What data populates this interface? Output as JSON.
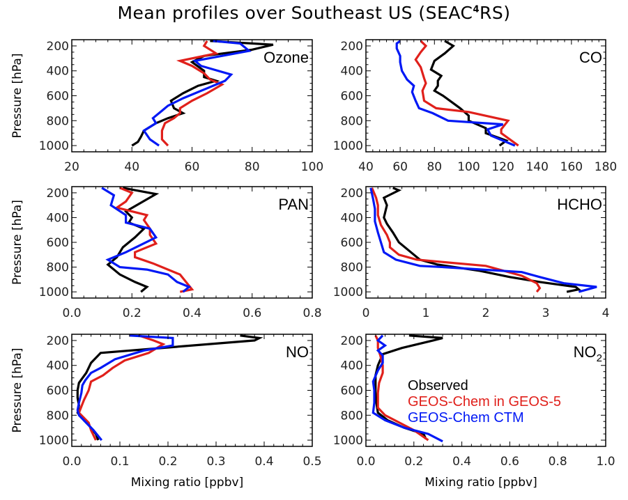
{
  "chart_data": {
    "type": "line",
    "title": "Mean profiles over Southeast US (SEAC4RS)",
    "title_parts": {
      "pre": "Mean profiles over Southeast US (SEAC",
      "sup": "4",
      "post": "RS)"
    },
    "ylabel": "Pressure [hPa]",
    "xlabel": "Mixing ratio [ppbv]",
    "y_ticks": [
      200,
      400,
      600,
      800,
      1000
    ],
    "ylim": [
      150,
      1050
    ],
    "y_reversed": true,
    "legend": {
      "placement": "inside NO2 panel, center-left",
      "entries": [
        {
          "name": "Observed",
          "color": "#000000"
        },
        {
          "name": "GEOS-Chem in GEOS-5",
          "color": "#e0201b"
        },
        {
          "name": "GEOS-Chem CTM",
          "color": "#0018f5"
        }
      ]
    },
    "series_colors": {
      "observed": "#000000",
      "geos5": "#e0201b",
      "ctm": "#0018f5"
    },
    "panels": [
      {
        "id": "ozone",
        "label": "Ozone",
        "label_sub": "",
        "xlim": [
          20,
          100
        ],
        "x_ticks": [
          20,
          40,
          60,
          80,
          100
        ],
        "x_tick_labels": [
          "20",
          "40",
          "60",
          "80",
          "100"
        ],
        "show_xlabel": false,
        "show_ylabel": true,
        "series": {
          "observed": {
            "p": [
              160,
              190,
              230,
              280,
              330,
              400,
              450,
              480,
              520,
              580,
              640,
              700,
              740,
              780,
              820,
              880,
              930,
              970,
              1000
            ],
            "v": [
              66,
              87,
              80,
              64,
              60,
              64,
              64,
              68,
              62,
              57,
              53,
              54,
              57,
              52,
              48,
              44,
              43,
              42,
              40
            ]
          },
          "geos5": {
            "p": [
              160,
              200,
              260,
              320,
              360,
              420,
              470,
              510,
              580,
              640,
              700,
              740,
              780,
              820,
              880,
              950,
              1000
            ],
            "v": [
              65,
              64,
              68,
              56,
              60,
              64,
              66,
              70,
              65,
              60,
              56,
              56,
              54,
              51,
              50,
              50,
              52
            ]
          },
          "ctm": {
            "p": [
              160,
              180,
              240,
              320,
              360,
              430,
              480,
              540,
              620,
              680,
              720,
              780,
              820,
              880,
              950,
              1000
            ],
            "v": [
              67,
              76,
              79,
              61,
              63,
              73,
              71,
              65,
              57,
              52,
              50,
              47,
              48,
              44,
              46,
              49
            ]
          }
        }
      },
      {
        "id": "co",
        "label": "CO",
        "label_sub": "",
        "xlim": [
          40,
          180
        ],
        "x_ticks": [
          40,
          60,
          80,
          100,
          120,
          140,
          160,
          180
        ],
        "x_tick_labels": [
          "40",
          "60",
          "80",
          "100",
          "120",
          "140",
          "160",
          "180"
        ],
        "show_xlabel": false,
        "show_ylabel": false,
        "series": {
          "observed": {
            "p": [
              160,
              200,
              260,
              320,
              390,
              440,
              480,
              520,
              560,
              600,
              650,
              700,
              760,
              800,
              860,
              900,
              960,
              1000
            ],
            "v": [
              86,
              91,
              86,
              80,
              78,
              84,
              82,
              82,
              80,
              85,
              90,
              95,
              100,
              100,
              110,
              110,
              122,
              118
            ],
            "note": "lowest segment approximate"
          },
          "geos5": {
            "p": [
              160,
              200,
              250,
              310,
              370,
              460,
              500,
              560,
              640,
              700,
              730,
              800,
              870,
              900,
              1000
            ],
            "v": [
              72,
              75,
              72,
              69,
              72,
              74,
              75,
              73,
              74,
              81,
              100,
              123,
              119,
              119,
              129
            ]
          },
          "ctm": {
            "p": [
              160,
              180,
              220,
              280,
              330,
              400,
              470,
              520,
              570,
              640,
              700,
              740,
              800,
              830,
              870,
              920,
              1000
            ],
            "v": [
              60,
              58,
              58,
              60,
              60,
              61,
              64,
              68,
              67,
              69,
              71,
              79,
              88,
              120,
              111,
              113,
              127
            ]
          }
        }
      },
      {
        "id": "pan",
        "label": "PAN",
        "label_sub": "",
        "xlim": [
          0.0,
          0.8
        ],
        "x_ticks": [
          0.0,
          0.2,
          0.4,
          0.6,
          0.8
        ],
        "x_tick_labels": [
          "0.0",
          "0.2",
          "0.4",
          "0.6",
          "0.8"
        ],
        "show_xlabel": false,
        "show_ylabel": true,
        "series": {
          "observed": {
            "p": [
              160,
              210,
              280,
              350,
              400,
              440,
              490,
              560,
              640,
              720,
              780,
              860,
              920,
              960,
              1000
            ],
            "v": [
              0.17,
              0.28,
              0.23,
              0.18,
              0.2,
              0.19,
              0.24,
              0.21,
              0.17,
              0.15,
              0.12,
              0.16,
              0.21,
              0.25,
              0.23
            ]
          },
          "geos5": {
            "p": [
              160,
              200,
              270,
              320,
              380,
              420,
              490,
              540,
              610,
              680,
              720,
              770,
              860,
              920,
              980,
              1000
            ],
            "v": [
              0.16,
              0.2,
              0.18,
              0.15,
              0.25,
              0.24,
              0.26,
              0.26,
              0.28,
              0.21,
              0.21,
              0.27,
              0.36,
              0.38,
              0.4,
              0.36
            ]
          },
          "ctm": {
            "p": [
              160,
              220,
              300,
              380,
              440,
              490,
              560,
              620,
              680,
              740,
              800,
              820,
              860,
              920,
              960,
              1000
            ],
            "v": [
              0.1,
              0.14,
              0.13,
              0.18,
              0.18,
              0.26,
              0.28,
              0.23,
              0.18,
              0.12,
              0.16,
              0.25,
              0.32,
              0.35,
              0.39,
              0.37
            ]
          }
        }
      },
      {
        "id": "hcho",
        "label": "HCHO",
        "label_sub": "",
        "xlim": [
          0,
          4
        ],
        "x_ticks": [
          0,
          1,
          2,
          3,
          4
        ],
        "x_tick_labels": [
          "0",
          "1",
          "2",
          "3",
          "4"
        ],
        "show_xlabel": false,
        "show_ylabel": false,
        "series": {
          "observed": {
            "p": [
              160,
              180,
              240,
              300,
              400,
              450,
              520,
              600,
              680,
              740,
              780,
              830,
              880,
              920,
              960,
              980,
              1000
            ],
            "v": [
              0.45,
              0.55,
              0.3,
              0.35,
              0.3,
              0.35,
              0.45,
              0.55,
              0.75,
              0.9,
              1.2,
              1.9,
              2.4,
              2.9,
              3.5,
              3.55,
              3.35
            ]
          },
          "geos5": {
            "p": [
              160,
              240,
              300,
              380,
              460,
              540,
              600,
              640,
              700,
              740,
              790,
              870,
              930,
              970,
              1000
            ],
            "v": [
              0.1,
              0.17,
              0.2,
              0.2,
              0.25,
              0.35,
              0.4,
              0.4,
              0.55,
              0.85,
              2.0,
              2.6,
              2.85,
              2.9,
              2.85
            ]
          },
          "ctm": {
            "p": [
              160,
              250,
              330,
              430,
              520,
              600,
              680,
              740,
              790,
              800,
              840,
              880,
              930,
              960,
              980,
              1000
            ],
            "v": [
              0.08,
              0.12,
              0.15,
              0.15,
              0.2,
              0.25,
              0.3,
              0.5,
              0.9,
              1.3,
              2.6,
              2.9,
              3.3,
              3.85,
              3.7,
              3.55
            ]
          }
        }
      },
      {
        "id": "no",
        "label": "NO",
        "label_sub": "",
        "xlim": [
          0.0,
          0.5
        ],
        "x_ticks": [
          0.0,
          0.1,
          0.2,
          0.3,
          0.4,
          0.5
        ],
        "x_tick_labels": [
          "0.0",
          "0.1",
          "0.2",
          "0.3",
          "0.4",
          "0.5"
        ],
        "show_xlabel": true,
        "show_ylabel": true,
        "series": {
          "observed": {
            "p": [
              160,
              180,
              200,
              300,
              380,
              460,
              540,
              600,
              660,
              720,
              780,
              840,
              900,
              950,
              1000
            ],
            "v": [
              0.35,
              0.39,
              0.38,
              0.06,
              0.04,
              0.03,
              0.015,
              0.012,
              0.012,
              0.015,
              0.012,
              0.025,
              0.04,
              0.05,
              0.055
            ]
          },
          "geos5": {
            "p": [
              160,
              200,
              230,
              300,
              360,
              420,
              480,
              530,
              600,
              680,
              780,
              860,
              920,
              1000
            ],
            "v": [
              0.14,
              0.17,
              0.19,
              0.16,
              0.11,
              0.085,
              0.065,
              0.04,
              0.035,
              0.025,
              0.015,
              0.035,
              0.04,
              0.05
            ]
          },
          "ctm": {
            "p": [
              160,
              180,
              240,
              280,
              350,
              420,
              460,
              520,
              560,
              620,
              700,
              760,
              800,
              860,
              920,
              1000
            ],
            "v": [
              0.12,
              0.21,
              0.21,
              0.15,
              0.09,
              0.06,
              0.04,
              0.028,
              0.022,
              0.02,
              0.015,
              0.012,
              0.015,
              0.03,
              0.045,
              0.062
            ]
          }
        }
      },
      {
        "id": "no2",
        "label": "NO",
        "label_sub": "2",
        "xlim": [
          0.0,
          1.0
        ],
        "x_ticks": [
          0.0,
          0.2,
          0.4,
          0.6,
          0.8,
          1.0
        ],
        "x_tick_labels": [
          "0.0",
          "0.2",
          "0.4",
          "0.6",
          "0.8",
          "1.0"
        ],
        "show_xlabel": true,
        "show_ylabel": false,
        "series": {
          "observed": {
            "p": [
              160,
              180,
              200,
              260,
              310,
              400,
              480,
              540,
              620,
              720,
              780,
              840,
              900,
              950,
              990
            ],
            "v": [
              0.18,
              0.32,
              0.28,
              0.15,
              0.07,
              0.05,
              0.04,
              0.04,
              0.04,
              0.045,
              0.05,
              0.09,
              0.16,
              0.24,
              0.25
            ]
          },
          "geos5": {
            "p": [
              160,
              200,
              260,
              320,
              400,
              460,
              540,
              620,
              700,
              740,
              800,
              860,
              920,
              1000
            ],
            "v": [
              0.04,
              0.05,
              0.05,
              0.06,
              0.07,
              0.07,
              0.055,
              0.05,
              0.05,
              0.05,
              0.08,
              0.14,
              0.2,
              0.26
            ]
          },
          "ctm": {
            "p": [
              160,
              200,
              240,
              280,
              320,
              380,
              440,
              530,
              600,
              700,
              780,
              840,
              900,
              950,
              1010
            ],
            "v": [
              0.07,
              0.05,
              0.08,
              0.05,
              0.07,
              0.07,
              0.05,
              0.03,
              0.035,
              0.035,
              0.03,
              0.08,
              0.16,
              0.26,
              0.32
            ]
          }
        }
      }
    ]
  }
}
